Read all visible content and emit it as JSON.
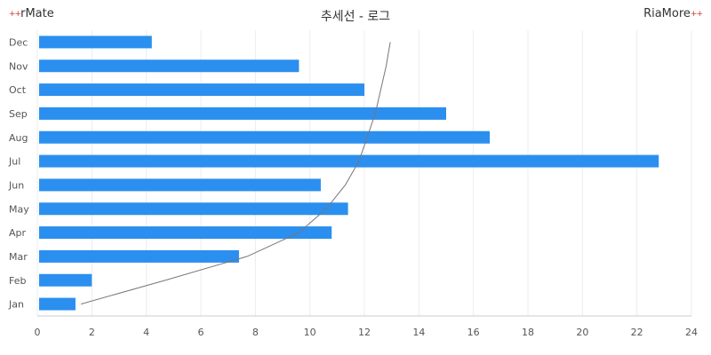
{
  "header": {
    "left_brand": "rMate",
    "right_brand": "RiaMore",
    "brand_mark": "++"
  },
  "chart_data": {
    "type": "bar",
    "orientation": "horizontal",
    "title": "추세선 - 로그",
    "categories": [
      "Jan",
      "Feb",
      "Mar",
      "Apr",
      "May",
      "Jun",
      "Jul",
      "Aug",
      "Sep",
      "Oct",
      "Nov",
      "Dec"
    ],
    "values": [
      1.4,
      2.0,
      7.4,
      10.8,
      11.4,
      10.4,
      22.8,
      16.6,
      15.0,
      12.0,
      9.6,
      4.2
    ],
    "xlim": [
      0,
      24
    ],
    "xticks": [
      0,
      2,
      4,
      6,
      8,
      10,
      12,
      14,
      16,
      18,
      20,
      22,
      24
    ],
    "trendline": {
      "type": "log",
      "points": [
        [
          1.6,
          1
        ],
        [
          4.7,
          2
        ],
        [
          7.7,
          3
        ],
        [
          9.6,
          4
        ],
        [
          10.6,
          5
        ],
        [
          11.3,
          6
        ],
        [
          11.8,
          7
        ],
        [
          12.1,
          8
        ],
        [
          12.4,
          9
        ],
        [
          12.6,
          10
        ],
        [
          12.8,
          11
        ],
        [
          12.95,
          12
        ]
      ]
    },
    "colors": {
      "bar": "#2b8fef",
      "trendline": "#777777",
      "grid": "#ececec"
    },
    "grid": true,
    "legend": "none"
  }
}
